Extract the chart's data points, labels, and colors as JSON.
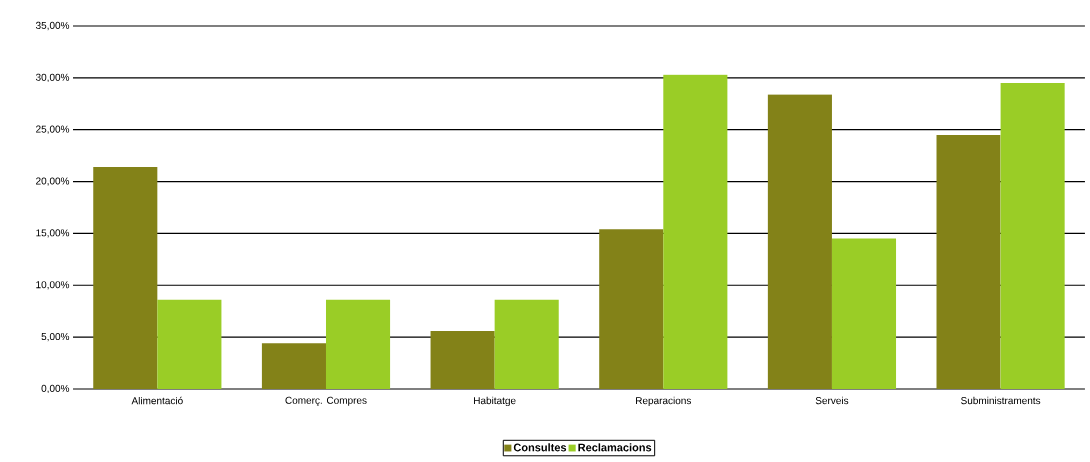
{
  "chart_data": {
    "type": "bar",
    "categories": [
      "Alimentació",
      "Comerç. Compres",
      "Habitatge",
      "Reparacions",
      "Serveis",
      "Subministraments"
    ],
    "series": [
      {
        "name": "Consultes",
        "color": "#838218",
        "values": [
          21.4,
          4.4,
          5.6,
          15.4,
          28.4,
          24.5
        ]
      },
      {
        "name": "Reclamacions",
        "color": "#9acd26",
        "values": [
          8.6,
          8.6,
          8.6,
          30.3,
          14.5,
          29.5
        ]
      }
    ],
    "ylim": [
      0,
      35
    ],
    "yticks": [
      {
        "value": 0,
        "label": "0,00%"
      },
      {
        "value": 5,
        "label": "5,00%"
      },
      {
        "value": 10,
        "label": "10,00%"
      },
      {
        "value": 15,
        "label": "15,00%"
      },
      {
        "value": 20,
        "label": "20,00%"
      },
      {
        "value": 25,
        "label": "25,00%"
      },
      {
        "value": 30,
        "label": "30,00%"
      },
      {
        "value": 35,
        "label": "35,00%"
      }
    ],
    "grid": "y",
    "legend": "bottom"
  }
}
